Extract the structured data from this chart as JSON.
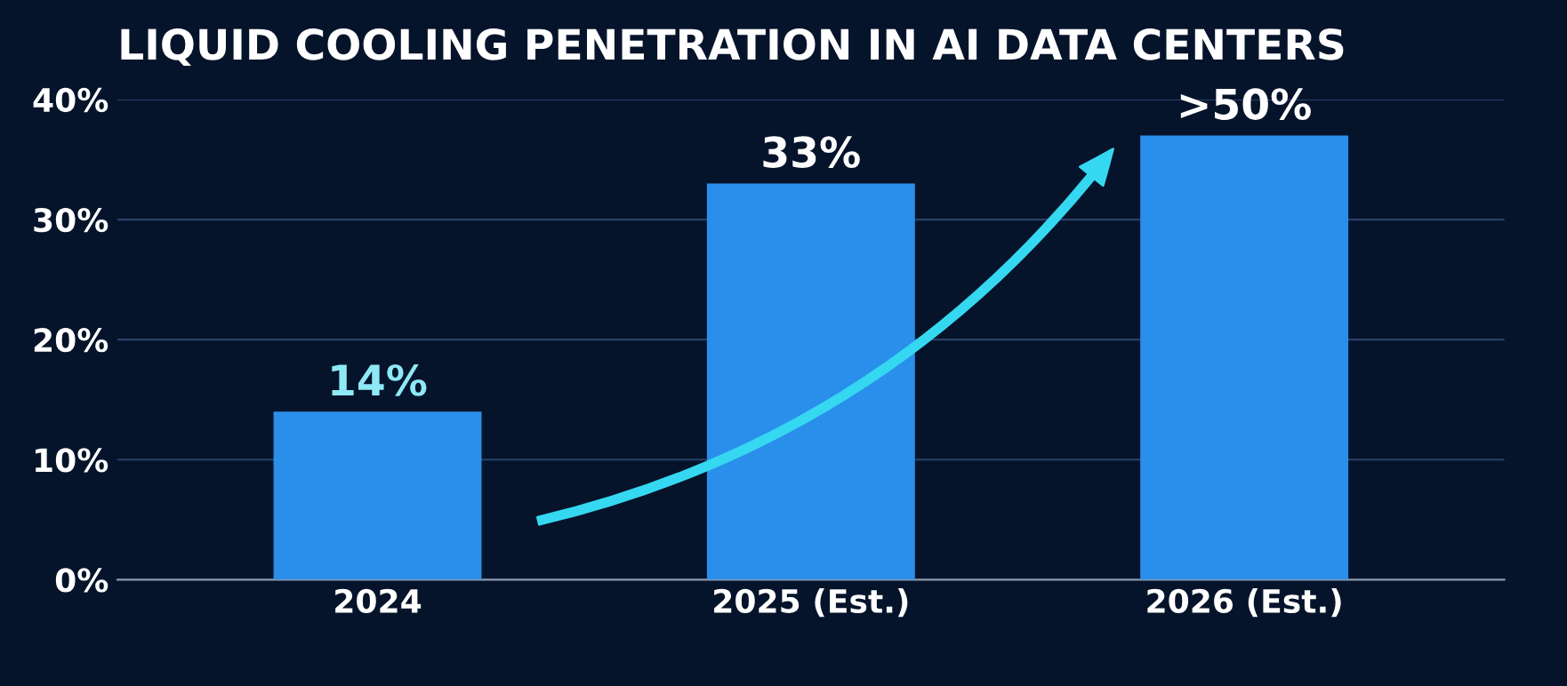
{
  "chart_data": {
    "type": "bar",
    "title": "LIQUID COOLING PENETRATION IN AI DATA CENTERS",
    "categories": [
      "2024",
      "2025 (Est.)",
      "2026 (Est.)"
    ],
    "values": [
      14,
      33,
      37
    ],
    "value_labels": [
      "14%",
      "33%",
      ">50%"
    ],
    "color": "#2a8fea",
    "ylim": [
      0,
      40
    ],
    "yticks": [
      {
        "value": 0,
        "label": "0%"
      },
      {
        "value": 10,
        "label": "10%"
      },
      {
        "value": 20,
        "label": "20%"
      },
      {
        "value": 30,
        "label": "30%"
      },
      {
        "value": 40,
        "label": "40%"
      }
    ],
    "grid": "y"
  }
}
